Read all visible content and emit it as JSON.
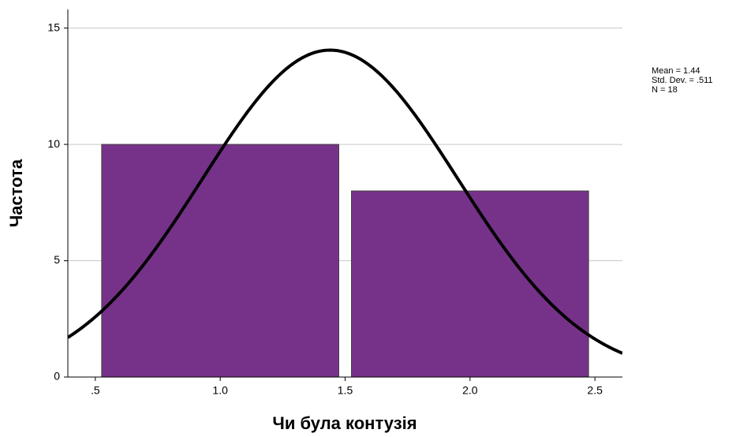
{
  "chart_data": {
    "type": "histogram",
    "x_label": "Чи була контузія",
    "y_label": "Частота",
    "bins": [
      0.5,
      1.5,
      2.5
    ],
    "values": [
      10,
      8
    ],
    "color": "#763289",
    "xlim": [
      0.39,
      2.61
    ],
    "xticks": [
      {
        "value": 0.5,
        "label": ".5"
      },
      {
        "value": 1,
        "label": "1.0"
      },
      1.5,
      {
        "value": 2,
        "label": "2.0"
      },
      2.5
    ],
    "ylim": [
      0,
      15.8
    ],
    "yticks": [
      0,
      5,
      10,
      15
    ],
    "grid": true,
    "normal_curve": {
      "mean": 1.44,
      "sd": 0.511,
      "n": 18
    },
    "annotations": [
      "Mean = 1.44",
      "Std. Dev. = .511",
      "N = 18"
    ]
  }
}
